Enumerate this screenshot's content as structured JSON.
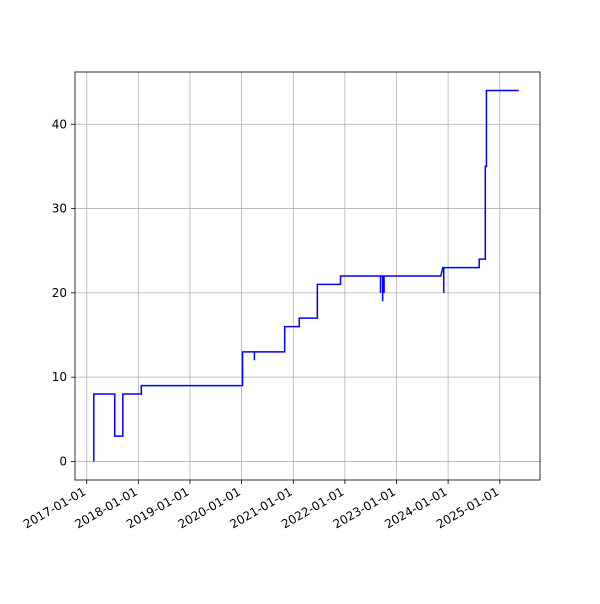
{
  "chart_data": {
    "type": "line",
    "x": [
      "2017-02-20",
      "2017-02-20",
      "2017-07-18",
      "2017-07-18",
      "2017-09-13",
      "2017-09-13",
      "2018-01-22",
      "2018-01-22",
      "2020-01-08",
      "2020-01-08",
      "2020-04-01",
      "2020-04-01",
      "2020-04-01",
      "2020-11-01",
      "2020-11-01",
      "2021-02-12",
      "2021-02-12",
      "2021-06-20",
      "2021-06-20",
      "2021-12-01",
      "2021-12-01",
      "2022-09-10",
      "2022-09-10",
      "2022-09-10",
      "2022-09-25",
      "2022-09-25",
      "2022-09-25",
      "2022-10-05",
      "2022-10-05",
      "2022-10-05",
      "2023-11-10",
      "2023-11-25",
      "2023-12-01",
      "2023-12-01",
      "2023-12-01",
      "2024-08-08",
      "2024-08-08",
      "2024-09-20",
      "2024-09-20",
      "2024-09-28",
      "2024-09-28",
      "2025-05-15"
    ],
    "series": [
      {
        "color": "#0000ff",
        "values": [
          0,
          8,
          8,
          3,
          3,
          8,
          8,
          9,
          9,
          13,
          13,
          12,
          13,
          13,
          16,
          16,
          17,
          17,
          21,
          21,
          22,
          22,
          20,
          22,
          22,
          19,
          22,
          22,
          20,
          22,
          22,
          23,
          23,
          20,
          23,
          23,
          24,
          24,
          35,
          35,
          44,
          44
        ]
      }
    ],
    "xlim": [
      "2016-10-10",
      "2025-10-12"
    ],
    "xticks": [
      "2017-01-01",
      "2018-01-01",
      "2019-01-01",
      "2020-01-01",
      "2021-01-01",
      "2022-01-01",
      "2023-01-01",
      "2024-01-01",
      "2025-01-01"
    ],
    "ylim": [
      -2.2,
      46.2
    ],
    "yticks": [
      0,
      10,
      20,
      30,
      40
    ],
    "grid": true
  }
}
